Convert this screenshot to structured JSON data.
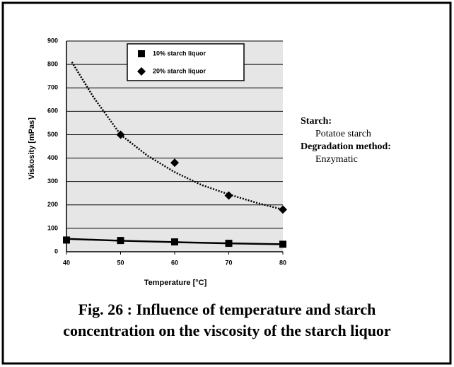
{
  "chart_data": {
    "type": "scatter",
    "caption": [
      "Fig. 26 : Influence of temperature and starch",
      "concentration on the viscosity of the starch liquor"
    ],
    "x_label": "Temperature [°C]",
    "y_label": "Viskosity [mPas]",
    "xlim": [
      40,
      80
    ],
    "xticks": [
      40,
      50,
      60,
      70,
      80
    ],
    "ylim": [
      0,
      900
    ],
    "yticks": [
      0,
      100,
      200,
      300,
      400,
      500,
      600,
      700,
      800,
      900
    ],
    "grid": true,
    "legend": "top",
    "series": [
      {
        "name": "10% starch liquor",
        "color": "#000000",
        "marker": "square",
        "x": [
          40,
          50,
          60,
          70,
          80
        ],
        "values": [
          50,
          48,
          42,
          36,
          32
        ]
      },
      {
        "name": "20% starch liquor",
        "color": "#000000",
        "marker": "diamond",
        "x": [
          50,
          60,
          70,
          80
        ],
        "values": [
          500,
          380,
          240,
          180
        ]
      }
    ],
    "trendlines": [
      {
        "x": [
          40,
          50,
          60,
          70,
          80
        ],
        "values": [
          55,
          47,
          41,
          36,
          32
        ]
      },
      {
        "x": [
          41,
          45,
          50,
          55,
          60,
          65,
          70,
          75,
          80
        ],
        "values": [
          810,
          660,
          500,
          410,
          340,
          285,
          245,
          210,
          180
        ]
      }
    ],
    "notes": [
      {
        "text": "Starch:",
        "bold": true
      },
      {
        "text": "Potatoe starch",
        "bold": false
      },
      {
        "text": "Degradation method:",
        "bold": true
      },
      {
        "text": "Enzymatic",
        "bold": false
      }
    ]
  }
}
